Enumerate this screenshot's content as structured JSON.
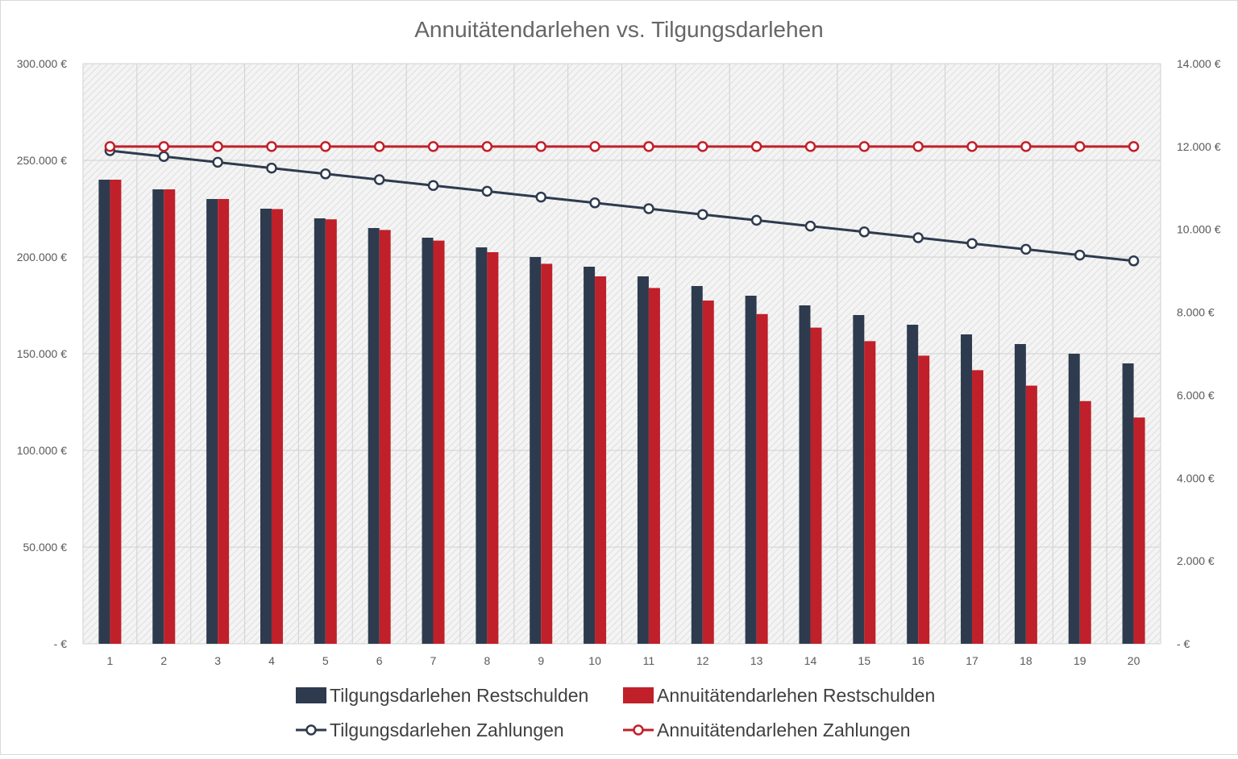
{
  "chart_data": {
    "type": "bar",
    "title": "Annuitätendarlehen vs. Tilgungsdarlehen",
    "categories": [
      "1",
      "2",
      "3",
      "4",
      "5",
      "6",
      "7",
      "8",
      "9",
      "10",
      "11",
      "12",
      "13",
      "14",
      "15",
      "16",
      "17",
      "18",
      "19",
      "20"
    ],
    "y_left": {
      "ylim": [
        0,
        300000
      ],
      "tick_labels": [
        "-   €",
        "50.000 €",
        "100.000 €",
        "150.000 €",
        "200.000 €",
        "250.000 €",
        "300.000 €"
      ],
      "tick_values": [
        0,
        50000,
        100000,
        150000,
        200000,
        250000,
        300000
      ]
    },
    "y_right": {
      "ylim": [
        0,
        14000
      ],
      "tick_labels": [
        "-   €",
        "2.000 €",
        "4.000 €",
        "6.000 €",
        "8.000 €",
        "10.000 €",
        "12.000 €",
        "14.000 €"
      ],
      "tick_values": [
        0,
        2000,
        4000,
        6000,
        8000,
        10000,
        12000,
        14000
      ]
    },
    "grid": true,
    "legend_position": "bottom",
    "series": [
      {
        "name": "Tilgungsdarlehen Restschulden",
        "type": "bar",
        "axis": "left",
        "color": "#2e3b4e",
        "values": [
          240000,
          235000,
          230000,
          225000,
          220000,
          215000,
          210000,
          205000,
          200000,
          195000,
          190000,
          185000,
          180000,
          175000,
          170000,
          165000,
          160000,
          155000,
          150000,
          145000
        ]
      },
      {
        "name": "Annuitätendarlehen Restschulden",
        "type": "bar",
        "axis": "left",
        "color": "#c0202a",
        "values": [
          240000,
          235000,
          230000,
          224800,
          219500,
          214000,
          208500,
          202500,
          196500,
          190000,
          184000,
          177500,
          170500,
          163500,
          156500,
          149000,
          141500,
          133500,
          125500,
          117000
        ]
      },
      {
        "name": "Tilgungsdarlehen Zahlungen",
        "type": "line",
        "axis": "right",
        "color": "#2e3b4e",
        "values": [
          11900,
          11760,
          11620,
          11480,
          11340,
          11200,
          11060,
          10920,
          10780,
          10640,
          10500,
          10360,
          10220,
          10080,
          9940,
          9800,
          9660,
          9520,
          9380,
          9240
        ]
      },
      {
        "name": "Annuitätendarlehen Zahlungen",
        "type": "line",
        "axis": "right",
        "color": "#c0202a",
        "values": [
          12000,
          12000,
          12000,
          12000,
          12000,
          12000,
          12000,
          12000,
          12000,
          12000,
          12000,
          12000,
          12000,
          12000,
          12000,
          12000,
          12000,
          12000,
          12000,
          12000
        ]
      }
    ]
  }
}
